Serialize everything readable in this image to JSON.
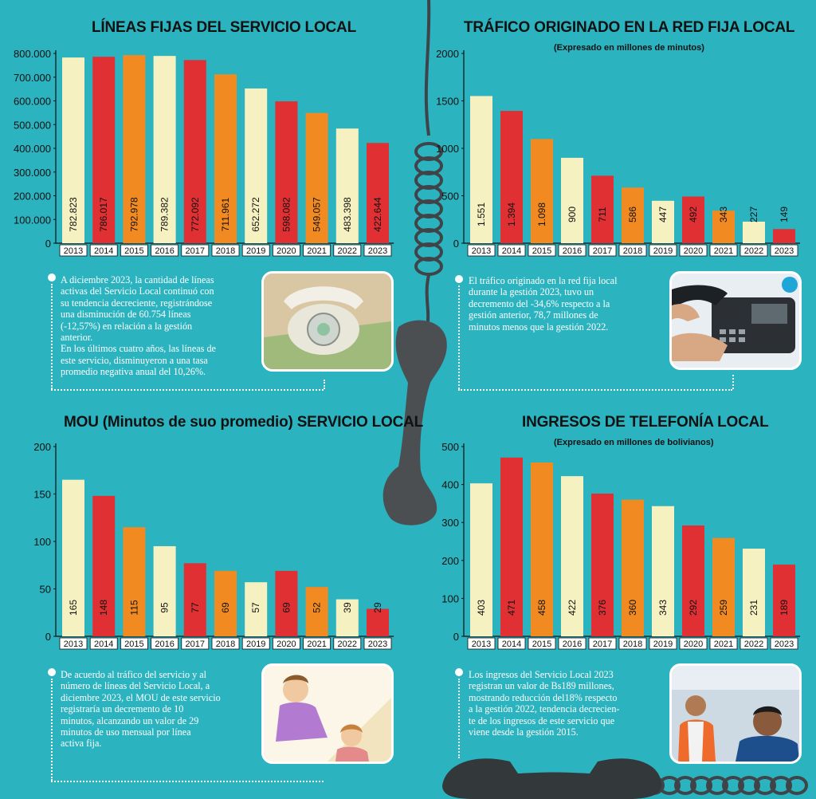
{
  "colors": {
    "background": "#2bb3bf",
    "cream": "#f6f1c1",
    "red": "#e03033",
    "orange": "#f28a22",
    "cord": "#4a4a4a"
  },
  "chart_data": [
    {
      "id": "lineas",
      "type": "bar",
      "title": "LÍNEAS FIJAS DEL SERVICIO LOCAL",
      "subtitle": "",
      "categories": [
        "2013",
        "2014",
        "2015",
        "2016",
        "2017",
        "2018",
        "2019",
        "2020",
        "2021",
        "2022",
        "2023"
      ],
      "values": [
        782823,
        786017,
        792978,
        789382,
        772092,
        711961,
        652272,
        598082,
        549057,
        483398,
        422644
      ],
      "value_labels": [
        "782.823",
        "786.017",
        "792.978",
        "789.382",
        "772.092",
        "711.961",
        "652.272",
        "598.082",
        "549.057",
        "483.398",
        "422.644"
      ],
      "colors": [
        "cream",
        "red",
        "orange",
        "cream",
        "red",
        "orange",
        "cream",
        "red",
        "orange",
        "cream",
        "red"
      ],
      "ylim": [
        0,
        800000
      ],
      "yticks": [
        "0",
        "100.000",
        "200.000",
        "300.000",
        "400.000",
        "500.000",
        "600.000",
        "700.000",
        "800.000"
      ],
      "ytick_values": [
        0,
        100000,
        200000,
        300000,
        400000,
        500000,
        600000,
        700000,
        800000
      ],
      "grid": false
    },
    {
      "id": "trafico",
      "type": "bar",
      "title": "TRÁFICO ORIGINADO EN LA RED FIJA LOCAL",
      "subtitle": "(Expresado en millones de minutos)",
      "categories": [
        "2013",
        "2014",
        "2015",
        "2016",
        "2017",
        "2018",
        "2019",
        "2020",
        "2021",
        "2022",
        "2023"
      ],
      "values": [
        1551,
        1394,
        1098,
        900,
        711,
        586,
        447,
        492,
        343,
        227,
        149
      ],
      "value_labels": [
        "1.551",
        "1.394",
        "1.098",
        "900",
        "711",
        "586",
        "447",
        "492",
        "343",
        "227",
        "149"
      ],
      "colors": [
        "cream",
        "red",
        "orange",
        "cream",
        "red",
        "orange",
        "cream",
        "red",
        "orange",
        "cream",
        "red"
      ],
      "ylim": [
        0,
        2000
      ],
      "yticks": [
        "0",
        "500",
        "1000",
        "1500",
        "2000"
      ],
      "ytick_values": [
        0,
        500,
        1000,
        1500,
        2000
      ],
      "grid": false
    },
    {
      "id": "mou",
      "type": "bar",
      "title": "MOU (Minutos de suo promedio) SERVICIO LOCAL",
      "subtitle": "",
      "categories": [
        "2013",
        "2014",
        "2015",
        "2016",
        "2017",
        "2018",
        "2019",
        "2020",
        "2021",
        "2022",
        "2023"
      ],
      "values": [
        165,
        148,
        115,
        95,
        77,
        69,
        57,
        69,
        52,
        39,
        29
      ],
      "value_labels": [
        "165",
        "148",
        "115",
        "95",
        "77",
        "69",
        "57",
        "69",
        "52",
        "39",
        "29"
      ],
      "colors": [
        "cream",
        "red",
        "orange",
        "cream",
        "red",
        "orange",
        "cream",
        "red",
        "orange",
        "cream",
        "red"
      ],
      "ylim": [
        0,
        200
      ],
      "yticks": [
        "0",
        "50",
        "100",
        "150",
        "200"
      ],
      "ytick_values": [
        0,
        50,
        100,
        150,
        200
      ],
      "grid": false
    },
    {
      "id": "ingresos",
      "type": "bar",
      "title": "INGRESOS DE TELEFONÍA LOCAL",
      "subtitle": "(Expresado en millones de bolivianos)",
      "categories": [
        "2013",
        "2014",
        "2015",
        "2016",
        "2017",
        "2018",
        "2019",
        "2020",
        "2021",
        "2022",
        "2023"
      ],
      "values": [
        403,
        471,
        458,
        422,
        376,
        360,
        343,
        292,
        259,
        231,
        189
      ],
      "value_labels": [
        "403",
        "471",
        "458",
        "422",
        "376",
        "360",
        "343",
        "292",
        "259",
        "231",
        "189"
      ],
      "colors": [
        "cream",
        "red",
        "orange",
        "cream",
        "red",
        "orange",
        "cream",
        "red",
        "orange",
        "cream",
        "red"
      ],
      "ylim": [
        0,
        500
      ],
      "yticks": [
        "0",
        "100",
        "200",
        "300",
        "400",
        "500"
      ],
      "ytick_values": [
        0,
        100,
        200,
        300,
        400,
        500
      ],
      "grid": false
    }
  ],
  "notes": {
    "lineas": "A diciembre 2023, la cantidad de líneas\nactivas del Servicio Local continuó con\nsu tendencia decreciente, registrándose\nuna disminución de 60.754 líneas\n(-12,57%) en relación a la gestión\nanterior.\nEn los últimos cuatro años, las líneas de\neste servicio, disminuyeron a una tasa\npromedio negativa anual del 10,26%.",
    "trafico": "El tráfico originado en la red fija local\ndurante la gestión 2023, tuvo un\ndecremento del -34,6% respecto a la\ngestión anterior, 78,7 millones de\nminutos menos que la gestión 2022.",
    "mou": "De acuerdo al tráfico del servicio y al\nnúmero de líneas del Servicio Local, a\ndiciembre 2023, el MOU de este servicio\nregistraría un decremento de 10\nminutos, alcanzando un valor de 29\nminutos de uso mensual por línea\nactiva fija.",
    "ingresos": "Los ingresos del Servicio Local 2023\nregistran un valor de Bs189 millones,\nmostrando reducción del18% respecto\na la gestión 2022, tendencia decrecien-\nte de los ingresos de este servicio que\nviene desde la gestión 2015."
  },
  "photos": {
    "lineas": "rotary-phone-photo",
    "trafico": "desk-phone-photo",
    "mou": "phone-call-illustration",
    "ingresos": "telecom-office-photo"
  }
}
